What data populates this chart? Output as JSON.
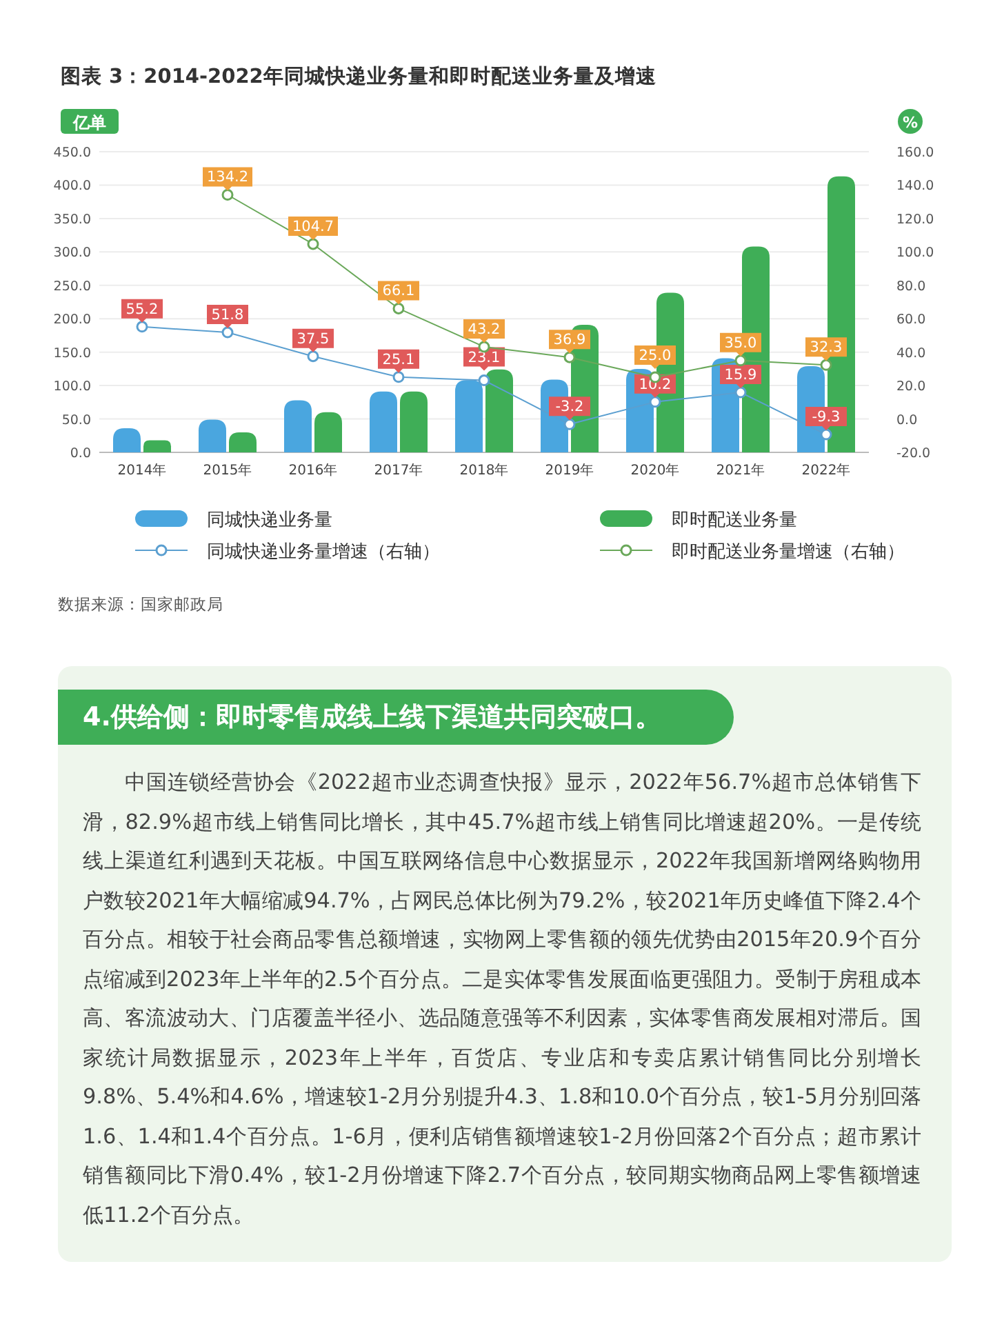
{
  "chart_data": {
    "type": "bar",
    "title": "图表 3：2014-2022年同城快递业务量和即时配送业务量及增速",
    "ylabel": "亿单",
    "y2label": "%",
    "categories": [
      "2014年",
      "2015年",
      "2016年",
      "2017年",
      "2018年",
      "2019年",
      "2020年",
      "2021年",
      "2022年"
    ],
    "series": [
      {
        "name": "同城快递业务量",
        "color": "#4aa6df",
        "values": [
          36,
          49,
          78,
          91,
          108,
          109,
          125,
          141,
          129
        ]
      },
      {
        "name": "即时配送业务量",
        "color": "#3fae57",
        "values": [
          18,
          30,
          60,
          91,
          124,
          191,
          239,
          308,
          413
        ]
      },
      {
        "name": "同城快递业务量增速（右轴）",
        "type": "line",
        "axis": "y2",
        "color": "#5b9fd0",
        "marker": "circle",
        "values": [
          55.2,
          51.8,
          37.5,
          25.1,
          23.1,
          -3.2,
          10.2,
          15.9,
          -9.3
        ],
        "value_labels": [
          "55.2",
          "51.8",
          "37.5",
          "25.1",
          "23.1",
          "-3.2",
          "10.2",
          "15.9",
          "-9.3"
        ]
      },
      {
        "name": "即时配送业务量增速（右轴）",
        "type": "line",
        "axis": "y2",
        "color": "#6aa85a",
        "marker": "circle",
        "values": [
          null,
          134.2,
          104.7,
          66.1,
          43.2,
          36.9,
          25.0,
          35.0,
          32.3
        ],
        "value_labels": [
          null,
          "134.2",
          "104.7",
          "66.1",
          "43.2",
          "36.9",
          "25.0",
          "35.0",
          "32.3"
        ]
      }
    ],
    "ylim": [
      0,
      450
    ],
    "yticks": [
      {
        "value": 0,
        "label": "0.0"
      },
      {
        "value": 50,
        "label": "50.0"
      },
      {
        "value": 100,
        "label": "100.0"
      },
      {
        "value": 150,
        "label": "150.0"
      },
      {
        "value": 200,
        "label": "200.0"
      },
      {
        "value": 250,
        "label": "250.0"
      },
      {
        "value": 300,
        "label": "300.0"
      },
      {
        "value": 350,
        "label": "350.0"
      },
      {
        "value": 400,
        "label": "400.0"
      },
      {
        "value": 450,
        "label": "450.0"
      }
    ],
    "y2lim": [
      -20,
      160
    ],
    "y2ticks": [
      {
        "value": -20,
        "label": "-20.0"
      },
      {
        "value": 0,
        "label": "0.0"
      },
      {
        "value": 20,
        "label": "20.0"
      },
      {
        "value": 40,
        "label": "40.0"
      },
      {
        "value": 60,
        "label": "60.0"
      },
      {
        "value": 80,
        "label": "80.0"
      },
      {
        "value": 100,
        "label": "100.0"
      },
      {
        "value": 120,
        "label": "120.0"
      },
      {
        "value": 140,
        "label": "140.0"
      },
      {
        "value": 160,
        "label": "160.0"
      }
    ],
    "grid": "y",
    "legend": "bottom",
    "annotations": [
      "数据来源：国家邮政局",
      "4.供给侧：即时零售成线上线下渠道共同突破口。",
      "中国连锁经营协会《2022超市业态调查快报》显示，2022年56.7%超市总体销售下滑，82.9%超市线上销售同比增长，其中45.7%超市线上销售同比增速超20%。一是传统线上渠道红利遇到天花板。中国互联网络信息中心数据显示，2022年我国新增网络购物用户数较2021年大幅缩减94.7%，占网民总体比例为79.2%，较2021年历史峰值下降2.4个百分点。相较于社会商品零售总额增速，实物网上零售额的领先优势由2015年20.9个百分点缩减到2023年上半年的2.5个百分点。二是实体零售发展面临更强阻力。受制于房租成本高、客流波动大、门店覆盖半径小、选品随意强等不利因素，实体零售商发展相对滞后。国家统计局数据显示，2023年上半年，百货店、专业店和专卖店累计销售同比分别增长9.8%、5.4%和4.6%，增速较1-2月分别提升4.3、1.8和10.0个百分点，较1-5月分别回落1.6、1.4和1.4个百分点。1-6月，便利店销售额增速较1-2月份回落2个百分点；超市累计销售额同比下滑0.4%，较1-2月份增速下降2.7个百分点，较同期实物商品网上零售额增速低11.2个百分点。"
    ]
  }
}
